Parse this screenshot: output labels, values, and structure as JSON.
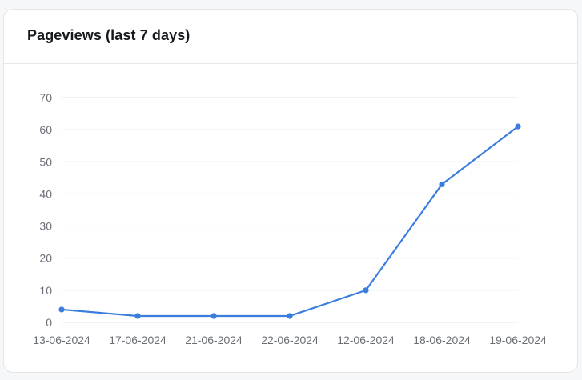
{
  "card": {
    "title": "Pageviews (last 7 days)"
  },
  "colors": {
    "line": "#3b7ddd",
    "grid": "#e5e7ea",
    "axis_text": "#6b6f75"
  },
  "chart_data": {
    "type": "line",
    "title": "Pageviews (last 7 days)",
    "xlabel": "",
    "ylabel": "",
    "categories": [
      "13-06-2024",
      "17-06-2024",
      "21-06-2024",
      "22-06-2024",
      "12-06-2024",
      "18-06-2024",
      "19-06-2024"
    ],
    "series": [
      {
        "values": [
          4,
          2,
          2,
          2,
          10,
          43,
          61
        ]
      }
    ],
    "ylim": [
      0,
      70
    ],
    "yticks": [
      0,
      10,
      20,
      30,
      40,
      50,
      60,
      70
    ],
    "grid": true,
    "legend": "none"
  }
}
